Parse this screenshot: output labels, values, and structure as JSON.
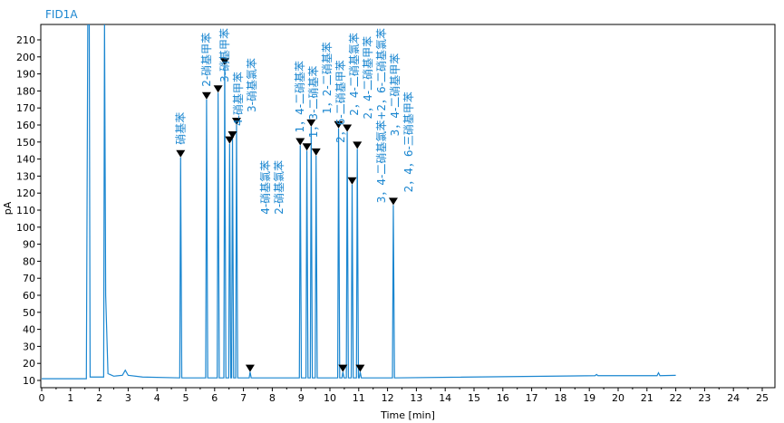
{
  "chart_data": {
    "type": "line",
    "title": "FID1A",
    "xlabel": "Time [min]",
    "ylabel": "pA",
    "xlim": [
      0,
      25.5
    ],
    "ylim": [
      8,
      218
    ],
    "xticks": [
      0,
      1,
      2,
      3,
      4,
      5,
      6,
      7,
      8,
      9,
      10,
      11,
      12,
      13,
      14,
      15,
      16,
      17,
      18,
      19,
      20,
      21,
      22,
      23,
      24,
      25
    ],
    "yticks": [
      10,
      20,
      30,
      40,
      50,
      60,
      70,
      80,
      90,
      100,
      110,
      120,
      130,
      140,
      150,
      160,
      170,
      180,
      190,
      200,
      210
    ],
    "line_color": "#1a86d0",
    "baseline": [
      [
        0,
        11
      ],
      [
        1.55,
        11
      ],
      [
        1.6,
        230
      ],
      [
        1.65,
        230
      ],
      [
        1.68,
        12
      ],
      [
        2.15,
        12
      ],
      [
        2.18,
        230
      ],
      [
        2.22,
        60
      ],
      [
        2.3,
        14
      ],
      [
        2.5,
        12.5
      ],
      [
        2.8,
        13
      ],
      [
        2.9,
        16
      ],
      [
        3.0,
        13
      ],
      [
        3.5,
        12
      ],
      [
        22,
        13
      ]
    ],
    "bumps": [
      [
        19.25,
        13.5
      ],
      [
        21.4,
        14.5
      ]
    ],
    "peaks": [
      {
        "t": 4.82,
        "h": 141,
        "label": "硝基苯"
      },
      {
        "t": 5.72,
        "h": 175,
        "label": "2-硝基甲苯"
      },
      {
        "t": 6.12,
        "h": 179,
        "label": ""
      },
      {
        "t": 6.35,
        "h": 195,
        "label": "3-硝基甲苯"
      },
      {
        "t": 6.52,
        "h": 149,
        "label": ""
      },
      {
        "t": 6.62,
        "h": 152,
        "label": "4-硝基甲苯"
      },
      {
        "t": 6.76,
        "h": 160,
        "label": "3-硝基氯苯"
      },
      {
        "t": 7.23,
        "h": 15,
        "label": "4-硝基氯苯"
      },
      {
        "t": 7.4,
        "h": 0,
        "label": "2-硝基氯苯"
      },
      {
        "t": 8.97,
        "h": 148,
        "label": "1，4-二硝基苯"
      },
      {
        "t": 9.2,
        "h": 145,
        "label": "1，3-二硝基苯"
      },
      {
        "t": 9.35,
        "h": 159,
        "label": "1，2-二硝基苯"
      },
      {
        "t": 9.52,
        "h": 142,
        "label": "2，6-二硝基甲苯"
      },
      {
        "t": 10.3,
        "h": 158,
        "label": "2，4-二硝基氯苯"
      },
      {
        "t": 10.45,
        "h": 15,
        "label": ""
      },
      {
        "t": 10.6,
        "h": 156,
        "label": "2，4-二硝基甲苯"
      },
      {
        "t": 10.77,
        "h": 125,
        "label": "3，4-二硝基氯苯+2，6-二硝基氯苯"
      },
      {
        "t": 10.95,
        "h": 146,
        "label": "3，4-二硝基甲苯"
      },
      {
        "t": 11.05,
        "h": 15,
        "label": ""
      },
      {
        "t": 12.2,
        "h": 113,
        "label": "2，4，6-三硝基甲苯"
      }
    ]
  }
}
